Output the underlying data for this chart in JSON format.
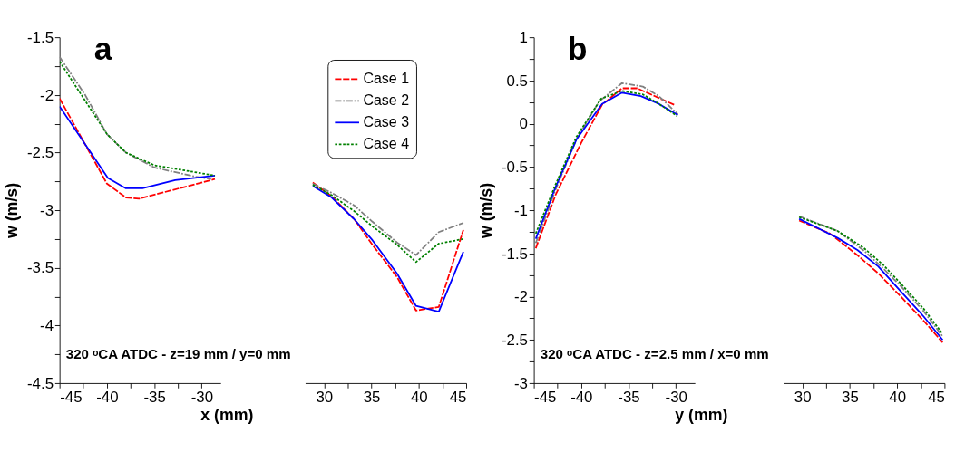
{
  "chart_data": [
    {
      "type": "line",
      "title": "a",
      "ylabel": "w (m/s)",
      "xlabel": "x (mm)",
      "annotations": [
        "320 ᵒCA ATDC - z=19 mm / y=0 mm"
      ],
      "xlim": [
        -45,
        -28
      ],
      "ylim": [
        -4.5,
        -1.5
      ],
      "grid": false,
      "legend": false,
      "xticks": [
        -45,
        {
          "value": -42.5,
          "label": null
        },
        -40,
        {
          "value": -37.5,
          "label": null
        },
        -35,
        {
          "value": -32.5,
          "label": null
        },
        -30
      ],
      "yticks": [
        -4.5,
        {
          "value": -4.25,
          "label": null
        },
        -4,
        {
          "value": -3.75,
          "label": null
        },
        -3.5,
        {
          "value": -3.25,
          "label": null
        },
        -3,
        {
          "value": -2.75,
          "label": null
        },
        -2.5,
        {
          "value": -2.25,
          "label": null
        },
        -2,
        {
          "value": -1.75,
          "label": null
        },
        -1.5
      ],
      "series": [
        {
          "color": "#ff0000",
          "line_style": "dashed",
          "x": [
            -45,
            -40,
            -38,
            -36.6,
            -28.6
          ],
          "values": [
            -2.03,
            -2.77,
            -2.89,
            -2.9,
            -2.73
          ]
        },
        {
          "color": "#808080",
          "line_style": "dashdot",
          "x": [
            -45,
            -42.3,
            -40,
            -38,
            -35,
            -30.6,
            -29
          ],
          "values": [
            -1.67,
            -2.0,
            -2.34,
            -2.5,
            -2.63,
            -2.71,
            -2.73
          ]
        },
        {
          "color": "#0000ff",
          "line_style": "solid",
          "x": [
            -45,
            -39.9,
            -38,
            -36.25,
            -32.8,
            -28.6
          ],
          "values": [
            -2.1,
            -2.72,
            -2.81,
            -2.81,
            -2.74,
            -2.7
          ]
        },
        {
          "color": "#008000",
          "line_style": "dotted",
          "x": [
            -45,
            -40,
            -38,
            -35,
            -28.6
          ],
          "values": [
            -1.71,
            -2.34,
            -2.5,
            -2.61,
            -2.7
          ]
        }
      ]
    },
    {
      "type": "line",
      "xlim": [
        28,
        45
      ],
      "ylim": [
        -4.5,
        -1.5
      ],
      "tick_labels": "x",
      "grid": false,
      "legend": "top",
      "xticks": [
        30,
        {
          "value": 32.5,
          "label": null
        },
        35,
        {
          "value": 37.5,
          "label": null
        },
        40,
        {
          "value": 42.5,
          "label": null
        },
        45
      ],
      "series": [
        {
          "name": "Case 1",
          "color": "#ff0000",
          "line_style": "dashed",
          "x": [
            28.8,
            30.8,
            33.2,
            35.1,
            37.7,
            39.7,
            42.1,
            44.7
          ],
          "values": [
            -2.76,
            -2.88,
            -3.08,
            -3.3,
            -3.58,
            -3.87,
            -3.84,
            -3.17
          ]
        },
        {
          "name": "Case 2",
          "color": "#808080",
          "line_style": "dashdot",
          "x": [
            28.8,
            30.8,
            33.2,
            35.1,
            37.7,
            39.7,
            42.1,
            44.7
          ],
          "values": [
            -2.77,
            -2.85,
            -2.96,
            -3.1,
            -3.28,
            -3.39,
            -3.19,
            -3.11
          ]
        },
        {
          "name": "Case 3",
          "color": "#0000ff",
          "line_style": "solid",
          "x": [
            28.8,
            30.8,
            33.2,
            35.1,
            37.7,
            39.7,
            42.1,
            44.7
          ],
          "values": [
            -2.79,
            -2.89,
            -3.08,
            -3.26,
            -3.55,
            -3.83,
            -3.88,
            -3.36
          ]
        },
        {
          "name": "Case 4",
          "color": "#008000",
          "line_style": "dotted",
          "x": [
            28.8,
            30.8,
            33.2,
            35.1,
            37.7,
            39.7,
            42.1,
            44.7
          ],
          "values": [
            -2.78,
            -2.87,
            -3.01,
            -3.14,
            -3.3,
            -3.45,
            -3.29,
            -3.25
          ]
        }
      ]
    },
    {
      "type": "line",
      "title": "b",
      "ylabel": "w (m/s)",
      "xlabel": "y (mm)",
      "annotations": [
        "320 ᵒCA ATDC - z=2.5 mm / x=0 mm"
      ],
      "xlim": [
        -45,
        -28
      ],
      "ylim": [
        -3,
        1
      ],
      "grid": false,
      "legend": false,
      "xticks": [
        -45,
        {
          "value": -42.5,
          "label": null
        },
        -40,
        {
          "value": -37.5,
          "label": null
        },
        -35,
        {
          "value": -32.5,
          "label": null
        },
        -30
      ],
      "yticks": [
        -3,
        {
          "value": -2.75,
          "label": null
        },
        -2.5,
        {
          "value": -2.25,
          "label": null
        },
        -2,
        {
          "value": -1.75,
          "label": null
        },
        -1.5,
        {
          "value": -1.25,
          "label": null
        },
        -1,
        {
          "value": -0.75,
          "label": null
        },
        -0.5,
        {
          "value": -0.25,
          "label": null
        },
        0,
        {
          "value": 0.25,
          "label": null
        },
        0.5,
        {
          "value": 0.75,
          "label": null
        },
        1
      ],
      "series": [
        {
          "color": "#ff0000",
          "line_style": "dashed",
          "x": [
            -44.8,
            -42.7,
            -40,
            -37.8,
            -35.7,
            -34.1,
            -30.2
          ],
          "values": [
            -1.44,
            -0.82,
            -0.22,
            0.22,
            0.41,
            0.41,
            0.22
          ]
        },
        {
          "color": "#808080",
          "line_style": "dashdot",
          "x": [
            -44.8,
            -42.7,
            -40.5,
            -38.1,
            -35.7,
            -33.5,
            -31.8,
            -29.8
          ],
          "values": [
            -1.38,
            -0.76,
            -0.18,
            0.26,
            0.47,
            0.43,
            0.32,
            0.11
          ]
        },
        {
          "color": "#0000ff",
          "line_style": "solid",
          "x": [
            -44.8,
            -42.7,
            -40.5,
            -37.8,
            -35.7,
            -33.7,
            -31.8,
            -29.8
          ],
          "values": [
            -1.33,
            -0.73,
            -0.18,
            0.23,
            0.36,
            0.32,
            0.23,
            0.1
          ]
        },
        {
          "color": "#008000",
          "line_style": "dotted",
          "x": [
            -44.8,
            -42.7,
            -40.5,
            -37.9,
            -35.7,
            -33.5,
            -31.8,
            -29.9
          ],
          "values": [
            -1.27,
            -0.7,
            -0.15,
            0.29,
            0.38,
            0.34,
            0.23,
            0.09
          ]
        }
      ]
    },
    {
      "type": "line",
      "xlim": [
        28,
        45
      ],
      "ylim": [
        -3,
        1
      ],
      "tick_labels": "x",
      "grid": false,
      "legend": false,
      "xticks": [
        30,
        {
          "value": 32.5,
          "label": null
        },
        35,
        {
          "value": 37.5,
          "label": null
        },
        40,
        {
          "value": 42.5,
          "label": null
        },
        45
      ],
      "series": [
        {
          "color": "#ff0000",
          "line_style": "dashed",
          "x": [
            29.65,
            32.9,
            35.8,
            38,
            40.4,
            42.8,
            44.8
          ],
          "values": [
            -1.12,
            -1.27,
            -1.52,
            -1.73,
            -2.0,
            -2.28,
            -2.53
          ]
        },
        {
          "color": "#808080",
          "line_style": "dashdot",
          "x": [
            29.65,
            33.7,
            36.4,
            38.5,
            40.4,
            42.8,
            44.8
          ],
          "values": [
            -1.07,
            -1.24,
            -1.46,
            -1.67,
            -1.88,
            -2.17,
            -2.46
          ]
        },
        {
          "color": "#0000ff",
          "line_style": "solid",
          "x": [
            29.65,
            33.7,
            35.8,
            38,
            40.4,
            42.8,
            44.8
          ],
          "values": [
            -1.1,
            -1.32,
            -1.46,
            -1.65,
            -1.94,
            -2.23,
            -2.5
          ]
        },
        {
          "color": "#008000",
          "line_style": "dotted",
          "x": [
            29.65,
            33.7,
            36.4,
            38.5,
            40.4,
            42.8,
            44.8
          ],
          "values": [
            -1.08,
            -1.24,
            -1.43,
            -1.63,
            -1.85,
            -2.14,
            -2.43
          ]
        }
      ]
    }
  ]
}
